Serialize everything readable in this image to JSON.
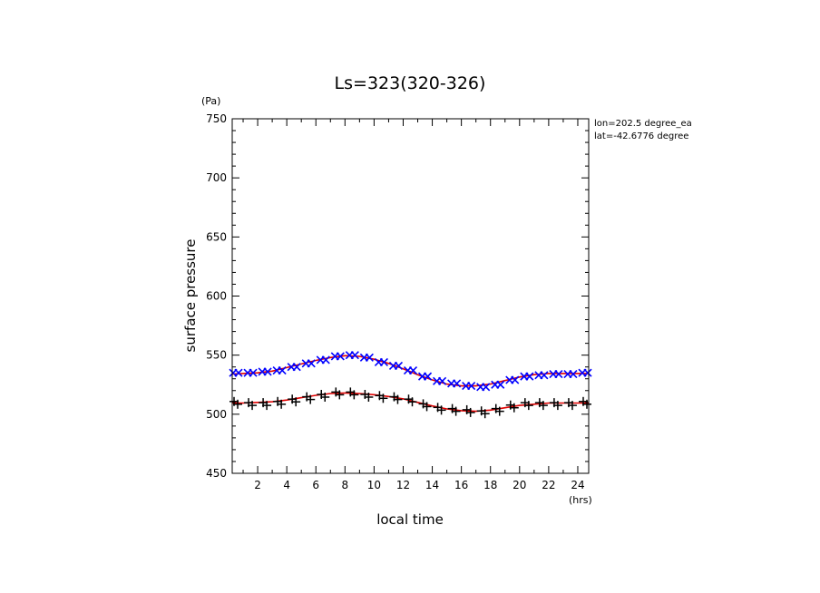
{
  "chart_data": {
    "type": "scatter",
    "title": "Ls=323(320-326)",
    "xlabel": "local time",
    "ylabel": "surface pressure",
    "xunit": "(hrs)",
    "yunit": "(Pa)",
    "xlim": [
      0.25,
      24.75
    ],
    "ylim": [
      450,
      750
    ],
    "xticks": [
      2,
      4,
      6,
      8,
      10,
      12,
      14,
      16,
      18,
      20,
      22,
      24
    ],
    "yticks": [
      450,
      500,
      550,
      600,
      650,
      700,
      750
    ],
    "annotations": [
      "lon=202.5 degree_ea",
      "lat=-42.6776 degree"
    ],
    "colors": {
      "fit": "#e00000",
      "upper_markers": "#0000ff",
      "lower_markers": "#000000",
      "axis": "#000000"
    },
    "series": [
      {
        "marker": "x",
        "x": [
          0.5,
          1.5,
          2.5,
          3.5,
          4.5,
          5.5,
          6.5,
          7.5,
          8.5,
          9.5,
          10.5,
          11.5,
          12.5,
          13.5,
          14.5,
          15.5,
          16.5,
          17.5,
          18.5,
          19.5,
          20.5,
          21.5,
          22.5,
          23.5,
          24.5
        ],
        "y": [
          535,
          535,
          536,
          537,
          540,
          543,
          546,
          549,
          550,
          548,
          544,
          541,
          537,
          532,
          528,
          526,
          524,
          523,
          525,
          529,
          532,
          533,
          534,
          534,
          535
        ]
      },
      {
        "marker": "+",
        "x": [
          0.5,
          1.5,
          2.5,
          3.5,
          4.5,
          5.5,
          6.5,
          7.5,
          8.5,
          9.5,
          10.5,
          11.5,
          12.5,
          13.5,
          14.5,
          15.5,
          16.5,
          17.5,
          18.5,
          19.5,
          20.5,
          21.5,
          22.5,
          23.5,
          24.5
        ],
        "y": [
          510,
          509,
          509,
          510,
          512,
          514,
          516,
          518,
          518,
          516,
          515,
          514,
          512,
          508,
          505,
          504,
          503,
          502,
          504,
          507,
          509,
          509,
          509,
          509,
          510
        ]
      }
    ],
    "fits": [
      {
        "x": [
          0.25,
          1,
          2,
          3,
          4,
          5,
          6,
          7,
          8,
          9,
          10,
          11,
          12,
          13,
          14,
          15,
          16,
          17,
          18,
          19,
          20,
          21,
          22,
          23,
          24,
          24.75
        ],
        "y": [
          534,
          534.5,
          535,
          536.5,
          539.5,
          542.5,
          545.5,
          548,
          549.5,
          549,
          546.5,
          543,
          538.5,
          533.5,
          529,
          525.5,
          524,
          524,
          525.5,
          528.5,
          531.5,
          533.5,
          534.5,
          534.5,
          534.5,
          534.5
        ]
      },
      {
        "x": [
          0.25,
          1,
          2,
          3,
          4,
          5,
          6,
          7,
          8,
          9,
          10,
          11,
          12,
          13,
          14,
          15,
          16,
          17,
          18,
          19,
          20,
          21,
          22,
          23,
          24,
          24.75
        ],
        "y": [
          509.5,
          509.5,
          510,
          510.5,
          512,
          514,
          516,
          517.5,
          518,
          517.5,
          516.5,
          515,
          513,
          510,
          507,
          504.5,
          503,
          502.5,
          503.5,
          505.5,
          507.5,
          508.5,
          509.5,
          509.5,
          509.5,
          509.5
        ]
      }
    ]
  }
}
